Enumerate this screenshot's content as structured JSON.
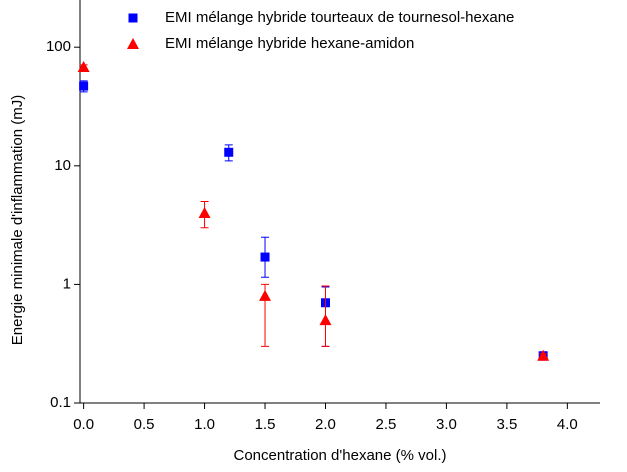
{
  "chart_data": {
    "type": "scatter",
    "x_label": "Concentration d'hexane  (% vol.)",
    "y_label": "Energie minimale d'inflammation (mJ)",
    "log_y": true,
    "xlim": [
      -0.03,
      4.27
    ],
    "ylim": [
      0.1,
      250
    ],
    "xticks": [
      {
        "value": 0,
        "label": "0.0"
      },
      0.5,
      {
        "value": 1,
        "label": "1.0"
      },
      1.5,
      {
        "value": 2,
        "label": "2.0"
      },
      2.5,
      {
        "value": 3,
        "label": "3.0"
      },
      3.5,
      {
        "value": 4,
        "label": "4.0"
      }
    ],
    "yticks": [
      0.1,
      1,
      10,
      100
    ],
    "legend": "top",
    "series": [
      {
        "name": "EMI mélange hybride tourteaux de tournesol-hexane",
        "color": "#0000ff",
        "marker": "square",
        "x": [
          0,
          1.2,
          1.5,
          2,
          3.8
        ],
        "values": [
          47,
          13,
          1.7,
          0.7,
          0.25
        ],
        "err_minus": [
          5,
          2,
          0.55,
          0.4,
          0.02
        ],
        "err_plus": [
          5,
          2,
          0.8,
          0.25,
          0.02
        ]
      },
      {
        "name": "EMI mélange hybride hexane-amidon",
        "color": "#ff0000",
        "marker": "triangle",
        "x": [
          0,
          1,
          1.5,
          2,
          3.8
        ],
        "values": [
          68,
          4,
          0.8,
          0.5,
          0.25
        ],
        "err_minus": [
          3,
          1,
          0.5,
          0.2,
          0.01
        ],
        "err_plus": [
          3,
          1,
          0.2,
          0.47,
          0.01
        ]
      }
    ]
  }
}
